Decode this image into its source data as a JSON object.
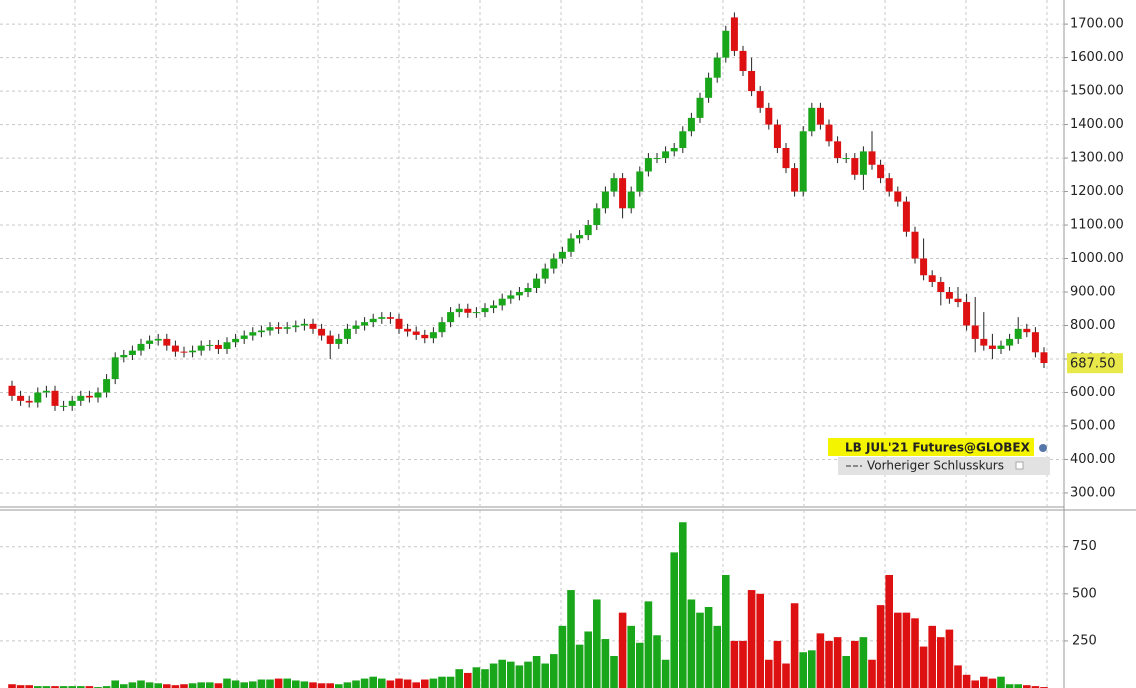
{
  "chart_data": [
    {
      "type": "candlestick",
      "series_name": "LB JUL'21 Futures@GLOBEX",
      "legend_note": "Vorheriger Schlusskurs",
      "up_color": "#1aa61a",
      "down_color": "#dd1111",
      "grid": true,
      "ylim": [
        264,
        1772
      ],
      "yticks": [
        {
          "value": 300,
          "label": "300.00"
        },
        {
          "value": 400,
          "label": "400.00"
        },
        {
          "value": 500,
          "label": "500.00"
        },
        {
          "value": 600,
          "label": "600.00"
        },
        {
          "value": 700,
          "label": "700.00"
        },
        {
          "value": 800,
          "label": "800.00"
        },
        {
          "value": 900,
          "label": "900.00"
        },
        {
          "value": 1000,
          "label": "1000.00"
        },
        {
          "value": 1100,
          "label": "1100.00"
        },
        {
          "value": 1200,
          "label": "1200.00"
        },
        {
          "value": 1300,
          "label": "1300.00"
        },
        {
          "value": 1400,
          "label": "1400.00"
        },
        {
          "value": 1500,
          "label": "1500.00"
        },
        {
          "value": 1600,
          "label": "1600.00"
        },
        {
          "value": 1700,
          "label": "1700.00"
        }
      ],
      "last_price": {
        "value": 687.5,
        "label": "687.50"
      },
      "open": [
        620,
        590,
        575,
        570,
        600,
        605,
        560,
        560,
        575,
        590,
        585,
        600,
        640,
        705,
        712,
        725,
        745,
        755,
        760,
        740,
        722,
        720,
        725,
        740,
        742,
        730,
        750,
        760,
        770,
        780,
        785,
        795,
        790,
        795,
        800,
        805,
        790,
        770,
        745,
        760,
        790,
        800,
        810,
        820,
        825,
        820,
        790,
        782,
        772,
        762,
        780,
        810,
        840,
        850,
        838,
        840,
        852,
        860,
        880,
        890,
        900,
        912,
        940,
        970,
        1000,
        1020,
        1060,
        1070,
        1100,
        1150,
        1200,
        1240,
        1150,
        1200,
        1260,
        1300,
        1300,
        1320,
        1330,
        1380,
        1420,
        1480,
        1540,
        1600,
        1720,
        1620,
        1560,
        1500,
        1450,
        1400,
        1330,
        1270,
        1200,
        1380,
        1450,
        1400,
        1350,
        1300,
        1300,
        1250,
        1320,
        1280,
        1240,
        1200,
        1170,
        1080,
        1000,
        950,
        930,
        900,
        880,
        870,
        800,
        760,
        740,
        730,
        740,
        760,
        790,
        780,
        720
      ],
      "high": [
        635,
        605,
        590,
        615,
        620,
        620,
        575,
        590,
        605,
        605,
        615,
        655,
        720,
        727,
        740,
        760,
        770,
        775,
        775,
        755,
        737,
        740,
        755,
        757,
        757,
        765,
        775,
        785,
        795,
        800,
        810,
        810,
        810,
        815,
        820,
        820,
        805,
        785,
        775,
        805,
        815,
        825,
        835,
        840,
        840,
        835,
        805,
        797,
        787,
        795,
        825,
        855,
        865,
        865,
        855,
        867,
        875,
        895,
        905,
        915,
        927,
        955,
        985,
        1015,
        1035,
        1075,
        1085,
        1115,
        1165,
        1215,
        1255,
        1255,
        1215,
        1275,
        1315,
        1315,
        1335,
        1345,
        1395,
        1435,
        1495,
        1555,
        1615,
        1695,
        1735,
        1635,
        1600,
        1515,
        1465,
        1415,
        1345,
        1285,
        1395,
        1465,
        1465,
        1415,
        1365,
        1315,
        1315,
        1335,
        1380,
        1295,
        1255,
        1215,
        1185,
        1095,
        1060,
        965,
        945,
        915,
        915,
        895,
        885,
        840,
        775,
        755,
        775,
        825,
        805,
        795,
        735
      ],
      "low": [
        575,
        560,
        555,
        555,
        585,
        545,
        545,
        545,
        560,
        570,
        570,
        585,
        625,
        690,
        697,
        710,
        730,
        740,
        725,
        707,
        705,
        705,
        710,
        725,
        715,
        715,
        735,
        745,
        755,
        765,
        770,
        775,
        775,
        780,
        785,
        775,
        755,
        700,
        730,
        745,
        775,
        785,
        795,
        805,
        805,
        775,
        767,
        757,
        747,
        747,
        765,
        795,
        825,
        823,
        823,
        825,
        837,
        845,
        865,
        875,
        885,
        897,
        925,
        955,
        985,
        1005,
        1045,
        1055,
        1085,
        1135,
        1185,
        1120,
        1135,
        1185,
        1245,
        1285,
        1285,
        1305,
        1315,
        1365,
        1405,
        1465,
        1525,
        1585,
        1605,
        1545,
        1485,
        1435,
        1385,
        1315,
        1255,
        1185,
        1185,
        1365,
        1385,
        1335,
        1285,
        1285,
        1235,
        1205,
        1265,
        1225,
        1185,
        1155,
        1065,
        985,
        935,
        915,
        860,
        865,
        855,
        785,
        720,
        725,
        700,
        715,
        725,
        745,
        765,
        705,
        673
      ],
      "close": [
        590,
        575,
        570,
        600,
        605,
        560,
        560,
        575,
        590,
        585,
        600,
        640,
        705,
        712,
        725,
        745,
        755,
        760,
        740,
        722,
        720,
        725,
        740,
        742,
        730,
        750,
        760,
        770,
        780,
        785,
        795,
        790,
        795,
        800,
        805,
        790,
        770,
        745,
        760,
        790,
        800,
        810,
        820,
        825,
        820,
        790,
        782,
        772,
        762,
        780,
        810,
        840,
        850,
        838,
        840,
        852,
        860,
        880,
        890,
        900,
        912,
        940,
        970,
        1000,
        1020,
        1060,
        1070,
        1100,
        1150,
        1200,
        1240,
        1150,
        1200,
        1260,
        1300,
        1300,
        1320,
        1330,
        1380,
        1420,
        1480,
        1540,
        1600,
        1680,
        1620,
        1560,
        1500,
        1450,
        1400,
        1330,
        1270,
        1200,
        1380,
        1450,
        1400,
        1350,
        1300,
        1300,
        1250,
        1320,
        1280,
        1240,
        1200,
        1170,
        1080,
        1000,
        950,
        930,
        900,
        880,
        870,
        800,
        760,
        740,
        730,
        740,
        760,
        790,
        780,
        720,
        688
      ]
    },
    {
      "type": "volume",
      "ylim": [
        0,
        945
      ],
      "yticks": [
        250,
        500,
        750
      ],
      "grid": true,
      "values": [
        20,
        15,
        15,
        10,
        10,
        10,
        10,
        10,
        10,
        10,
        5,
        10,
        40,
        20,
        30,
        40,
        30,
        25,
        20,
        15,
        20,
        25,
        30,
        30,
        25,
        50,
        40,
        30,
        35,
        45,
        45,
        50,
        50,
        40,
        35,
        30,
        25,
        25,
        20,
        30,
        40,
        50,
        60,
        50,
        40,
        50,
        45,
        30,
        45,
        50,
        60,
        60,
        100,
        80,
        110,
        100,
        130,
        150,
        140,
        120,
        140,
        170,
        130,
        180,
        330,
        520,
        230,
        300,
        470,
        260,
        170,
        400,
        330,
        240,
        460,
        280,
        150,
        720,
        880,
        470,
        400,
        430,
        330,
        600,
        250,
        250,
        520,
        500,
        150,
        250,
        130,
        450,
        190,
        200,
        290,
        250,
        270,
        170,
        250,
        270,
        150,
        440,
        600,
        400,
        400,
        370,
        220,
        330,
        270,
        310,
        120,
        70,
        40,
        60,
        50,
        60,
        20,
        20,
        15,
        10,
        5
      ]
    }
  ]
}
